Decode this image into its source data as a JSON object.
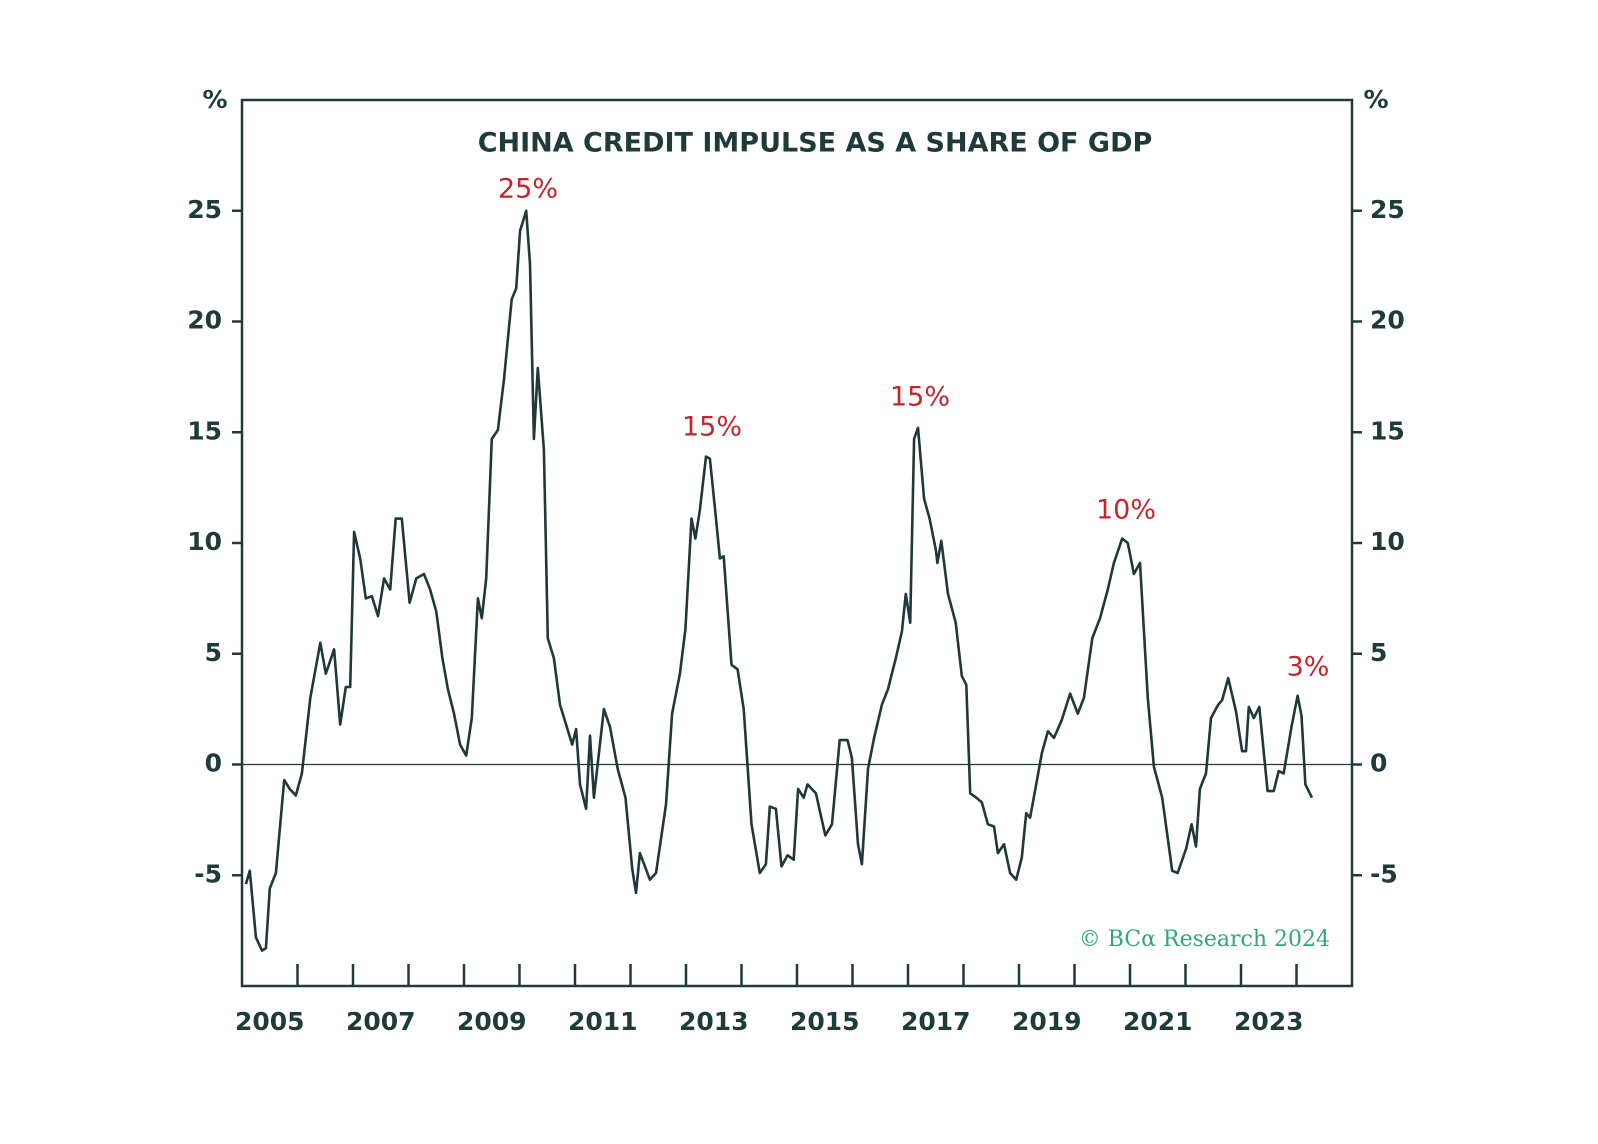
{
  "chart_data": {
    "type": "line",
    "title": "CHINA CREDIT IMPULSE AS A SHARE OF GDP",
    "ylabel": "%",
    "y2label": "%",
    "credit": "© BCα Research 2024",
    "annotations": [
      "25%",
      "15%",
      "15%",
      "10%",
      "3%"
    ],
    "xlim": [
      2005,
      2025
    ],
    "xticks": [
      {
        "value": 2005.5,
        "label": "2005"
      },
      {
        "value": 2007.5,
        "label": "2007"
      },
      {
        "value": 2009.5,
        "label": "2009"
      },
      {
        "value": 2011.5,
        "label": "2011"
      },
      {
        "value": 2013.5,
        "label": "2013"
      },
      {
        "value": 2015.5,
        "label": "2015"
      },
      {
        "value": 2017.5,
        "label": "2017"
      },
      {
        "value": 2019.5,
        "label": "2019"
      },
      {
        "value": 2021.5,
        "label": "2021"
      },
      {
        "value": 2023.5,
        "label": "2023"
      }
    ],
    "xminor_ticks": [
      2006,
      2007,
      2008,
      2009,
      2010,
      2011,
      2012,
      2013,
      2014,
      2015,
      2016,
      2017,
      2018,
      2019,
      2020,
      2021,
      2022,
      2023,
      2024
    ],
    "ylim": [
      -10,
      30
    ],
    "yticks": [
      -5,
      0,
      5,
      10,
      15,
      20,
      25
    ],
    "y2lim": [
      -10,
      30
    ],
    "y2ticks": [
      -5,
      0,
      5,
      10,
      15,
      20,
      25
    ],
    "zero_line": 0,
    "series": [
      {
        "color": "#1f3838",
        "x": [
          2005.07,
          2005.14,
          2005.25,
          2005.36,
          2005.43,
          2005.5,
          2005.61,
          2005.76,
          2005.86,
          2005.97,
          2006.08,
          2006.23,
          2006.41,
          2006.51,
          2006.66,
          2006.77,
          2006.87,
          2006.95,
          2007.02,
          2007.13,
          2007.23,
          2007.34,
          2007.45,
          2007.56,
          2007.67,
          2007.77,
          2007.88,
          2008.02,
          2008.14,
          2008.28,
          2008.39,
          2008.5,
          2008.61,
          2008.71,
          2008.82,
          2008.93,
          2009.04,
          2009.14,
          2009.25,
          2009.32,
          2009.4,
          2009.5,
          2009.61,
          2009.72,
          2009.86,
          2009.94,
          2010.01,
          2010.12,
          2010.19,
          2010.26,
          2010.33,
          2010.44,
          2010.51,
          2010.62,
          2010.73,
          2010.84,
          2010.95,
          2011.02,
          2011.09,
          2011.2,
          2011.27,
          2011.34,
          2011.52,
          2011.63,
          2011.77,
          2011.91,
          2012.03,
          2012.1,
          2012.17,
          2012.35,
          2012.46,
          2012.64,
          2012.75,
          2012.89,
          2012.99,
          2013.1,
          2013.17,
          2013.25,
          2013.36,
          2013.43,
          2013.54,
          2013.61,
          2013.68,
          2013.82,
          2013.93,
          2014.04,
          2014.18,
          2014.33,
          2014.44,
          2014.51,
          2014.62,
          2014.72,
          2014.83,
          2014.94,
          2015.02,
          2015.12,
          2015.19,
          2015.34,
          2015.51,
          2015.63,
          2015.77,
          2015.91,
          2015.99,
          2016.1,
          2016.17,
          2016.28,
          2016.39,
          2016.53,
          2016.64,
          2016.78,
          2016.89,
          2016.96,
          2017.04,
          2017.11,
          2017.18,
          2017.29,
          2017.39,
          2017.5,
          2017.53,
          2017.6,
          2017.72,
          2017.86,
          2017.97,
          2018.05,
          2018.12,
          2018.23,
          2018.33,
          2018.44,
          2018.55,
          2018.62,
          2018.73,
          2018.84,
          2018.95,
          2019.05,
          2019.13,
          2019.2,
          2019.31,
          2019.41,
          2019.52,
          2019.63,
          2019.77,
          2019.92,
          2020.06,
          2020.17,
          2020.32,
          2020.46,
          2020.6,
          2020.71,
          2020.86,
          2020.96,
          2021.07,
          2021.18,
          2021.32,
          2021.43,
          2021.58,
          2021.76,
          2021.86,
          2022.01,
          2022.11,
          2022.19,
          2022.26,
          2022.37,
          2022.46,
          2022.59,
          2022.66,
          2022.77,
          2022.91,
          2023.02,
          2023.09,
          2023.14,
          2023.23,
          2023.33,
          2023.48,
          2023.59,
          2023.68,
          2023.77,
          2023.91,
          2024.02,
          2024.09,
          2024.16,
          2024.28
        ],
        "values": [
          -5.4,
          -4.8,
          -7.8,
          -8.4,
          -8.3,
          -5.6,
          -4.9,
          -0.7,
          -1.1,
          -1.4,
          -0.4,
          3.0,
          5.5,
          4.1,
          5.2,
          1.8,
          3.5,
          3.5,
          10.5,
          9.3,
          7.5,
          7.6,
          6.7,
          8.4,
          7.9,
          11.1,
          11.1,
          7.3,
          8.4,
          8.6,
          7.9,
          6.9,
          4.8,
          3.4,
          2.3,
          0.9,
          0.4,
          2.1,
          7.5,
          6.6,
          8.4,
          14.7,
          15.1,
          17.4,
          21.0,
          21.5,
          24.1,
          25.0,
          22.6,
          14.7,
          17.9,
          14.2,
          5.7,
          4.8,
          2.7,
          1.8,
          0.9,
          1.6,
          -0.9,
          -2.0,
          1.3,
          -1.5,
          2.5,
          1.7,
          -0.2,
          -1.5,
          -4.7,
          -5.8,
          -4.0,
          -5.2,
          -4.9,
          -1.8,
          2.3,
          4.1,
          6.1,
          11.1,
          10.2,
          11.5,
          13.9,
          13.8,
          11.1,
          9.3,
          9.4,
          4.5,
          4.3,
          2.5,
          -2.7,
          -4.9,
          -4.5,
          -1.9,
          -2.0,
          -4.6,
          -4.1,
          -4.3,
          -1.1,
          -1.5,
          -0.9,
          -1.3,
          -3.2,
          -2.7,
          1.1,
          1.1,
          0.3,
          -3.6,
          -4.5,
          -0.2,
          1.2,
          2.7,
          3.4,
          4.8,
          6.0,
          7.7,
          6.4,
          14.7,
          15.2,
          12.0,
          11.1,
          9.7,
          9.1,
          10.1,
          7.7,
          6.4,
          4.0,
          3.6,
          -1.3,
          -1.5,
          -1.7,
          -2.7,
          -2.8,
          -4.0,
          -3.6,
          -4.9,
          -5.2,
          -4.2,
          -2.2,
          -2.4,
          -0.9,
          0.5,
          1.5,
          1.2,
          2.0,
          3.2,
          2.3,
          3.0,
          5.7,
          6.6,
          7.9,
          9.1,
          10.2,
          10.0,
          8.6,
          9.1,
          3.0,
          -0.1,
          -1.5,
          -4.8,
          -4.9,
          -3.8,
          -2.7,
          -3.7,
          -1.1,
          -0.4,
          2.1,
          2.7,
          2.9,
          3.9,
          2.4,
          0.6,
          0.6,
          2.6,
          2.1,
          2.6,
          -1.2,
          -1.2,
          -0.3,
          -0.4,
          1.7,
          3.1,
          2.2,
          -0.9,
          -1.5
        ]
      }
    ]
  }
}
